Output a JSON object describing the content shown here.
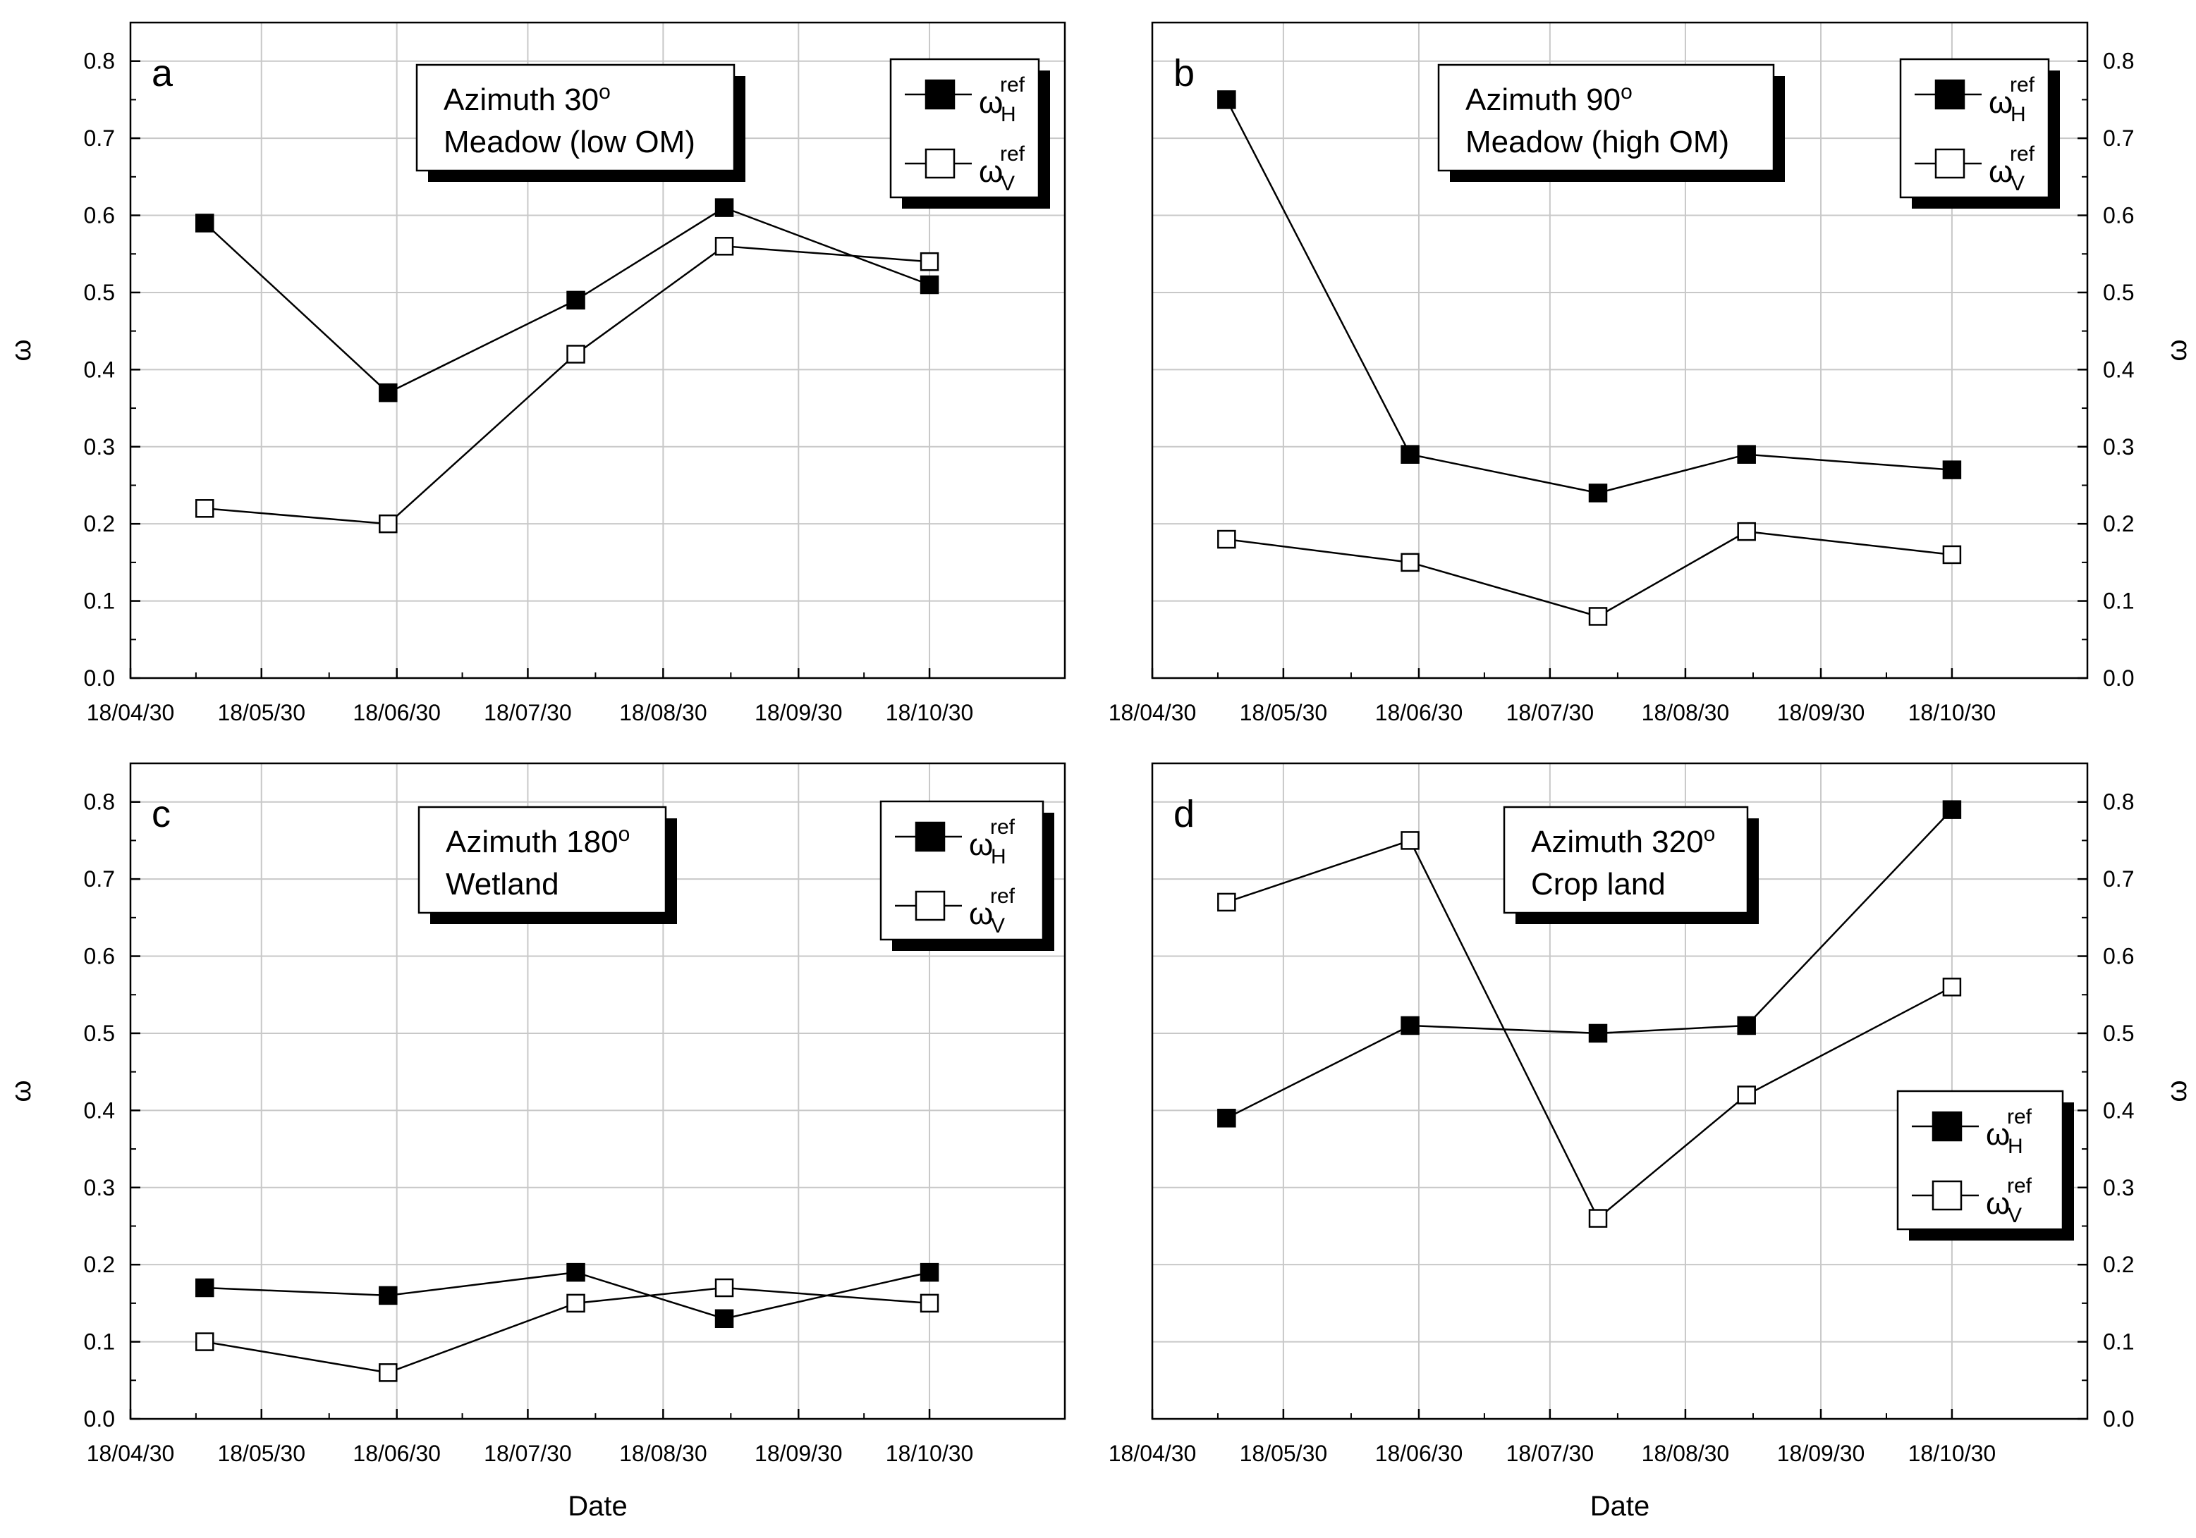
{
  "chart_data": [
    {
      "type": "line",
      "panel_label": "a",
      "annotation": [
        "Azimuth 30",
        "Meadow (low OM)"
      ],
      "annotation_superscript": "o",
      "x": [
        "18/05/17",
        "18/06/28",
        "18/08/10",
        "18/09/13",
        "18/10/30"
      ],
      "xticks": [
        "18/04/30",
        "18/05/30",
        "18/06/30",
        "18/07/30",
        "18/08/30",
        "18/09/30",
        "18/10/30"
      ],
      "yticks": [
        "0.0",
        "0.1",
        "0.2",
        "0.3",
        "0.4",
        "0.5",
        "0.6",
        "0.7",
        "0.8"
      ],
      "ylim": [
        0,
        0.85
      ],
      "xlabel": "",
      "ylabel": "ω",
      "y_axis_side": "left",
      "legend_position": "top-right",
      "series": [
        {
          "name": "ω_H^ref",
          "base": "ω",
          "sub": "H",
          "sup": "ref",
          "marker": "filled-square",
          "values": [
            0.59,
            0.37,
            0.49,
            0.61,
            0.51
          ]
        },
        {
          "name": "ω_V^ref",
          "base": "ω",
          "sub": "V",
          "sup": "ref",
          "marker": "open-square",
          "values": [
            0.22,
            0.2,
            0.42,
            0.56,
            0.54
          ]
        }
      ]
    },
    {
      "type": "line",
      "panel_label": "b",
      "annotation": [
        "Azimuth 90",
        "Meadow (high OM)"
      ],
      "annotation_superscript": "o",
      "x": [
        "18/05/17",
        "18/06/28",
        "18/08/10",
        "18/09/13",
        "18/10/30"
      ],
      "xticks": [
        "18/04/30",
        "18/05/30",
        "18/06/30",
        "18/07/30",
        "18/08/30",
        "18/09/30",
        "18/10/30"
      ],
      "yticks": [
        "0.0",
        "0.1",
        "0.2",
        "0.3",
        "0.4",
        "0.5",
        "0.6",
        "0.7",
        "0.8"
      ],
      "ylim": [
        0,
        0.85
      ],
      "xlabel": "",
      "ylabel": "ω",
      "y_axis_side": "right",
      "legend_position": "top-right",
      "series": [
        {
          "name": "ω_H^ref",
          "base": "ω",
          "sub": "H",
          "sup": "ref",
          "marker": "filled-square",
          "values": [
            0.75,
            0.29,
            0.24,
            0.29,
            0.27
          ]
        },
        {
          "name": "ω_V^ref",
          "base": "ω",
          "sub": "V",
          "sup": "ref",
          "marker": "open-square",
          "values": [
            0.18,
            0.15,
            0.08,
            0.19,
            0.16
          ]
        }
      ]
    },
    {
      "type": "line",
      "panel_label": "c",
      "annotation": [
        "Azimuth 180",
        "Wetland"
      ],
      "annotation_superscript": "o",
      "x": [
        "18/05/17",
        "18/06/28",
        "18/08/10",
        "18/09/13",
        "18/10/30"
      ],
      "xticks": [
        "18/04/30",
        "18/05/30",
        "18/06/30",
        "18/07/30",
        "18/08/30",
        "18/09/30",
        "18/10/30"
      ],
      "yticks": [
        "0.0",
        "0.1",
        "0.2",
        "0.3",
        "0.4",
        "0.5",
        "0.6",
        "0.7",
        "0.8"
      ],
      "ylim": [
        0,
        0.85
      ],
      "xlabel": "Date",
      "ylabel": "ω",
      "y_axis_side": "left",
      "legend_position": "top-right",
      "series": [
        {
          "name": "ω_H^ref",
          "base": "ω",
          "sub": "H",
          "sup": "ref",
          "marker": "filled-square",
          "values": [
            0.17,
            0.16,
            0.19,
            0.13,
            0.19
          ]
        },
        {
          "name": "ω_V^ref",
          "base": "ω",
          "sub": "V",
          "sup": "ref",
          "marker": "open-square",
          "values": [
            0.1,
            0.06,
            0.15,
            0.17,
            0.15
          ]
        }
      ]
    },
    {
      "type": "line",
      "panel_label": "d",
      "annotation": [
        "Azimuth 320",
        "Crop land"
      ],
      "annotation_superscript": "o",
      "x": [
        "18/05/17",
        "18/06/28",
        "18/08/10",
        "18/09/13",
        "18/10/30"
      ],
      "xticks": [
        "18/04/30",
        "18/05/30",
        "18/06/30",
        "18/07/30",
        "18/08/30",
        "18/09/30",
        "18/10/30"
      ],
      "yticks": [
        "0.0",
        "0.1",
        "0.2",
        "0.3",
        "0.4",
        "0.5",
        "0.6",
        "0.7",
        "0.8"
      ],
      "ylim": [
        0,
        0.85
      ],
      "xlabel": "Date",
      "ylabel": "ω",
      "y_axis_side": "right",
      "legend_position": "bottom-right",
      "series": [
        {
          "name": "ω_H^ref",
          "base": "ω",
          "sub": "H",
          "sup": "ref",
          "marker": "filled-square",
          "values": [
            0.39,
            0.51,
            0.5,
            0.51,
            0.79
          ]
        },
        {
          "name": "ω_V^ref",
          "base": "ω",
          "sub": "V",
          "sup": "ref",
          "marker": "open-square",
          "values": [
            0.67,
            0.75,
            0.26,
            0.42,
            0.56
          ]
        }
      ]
    }
  ]
}
